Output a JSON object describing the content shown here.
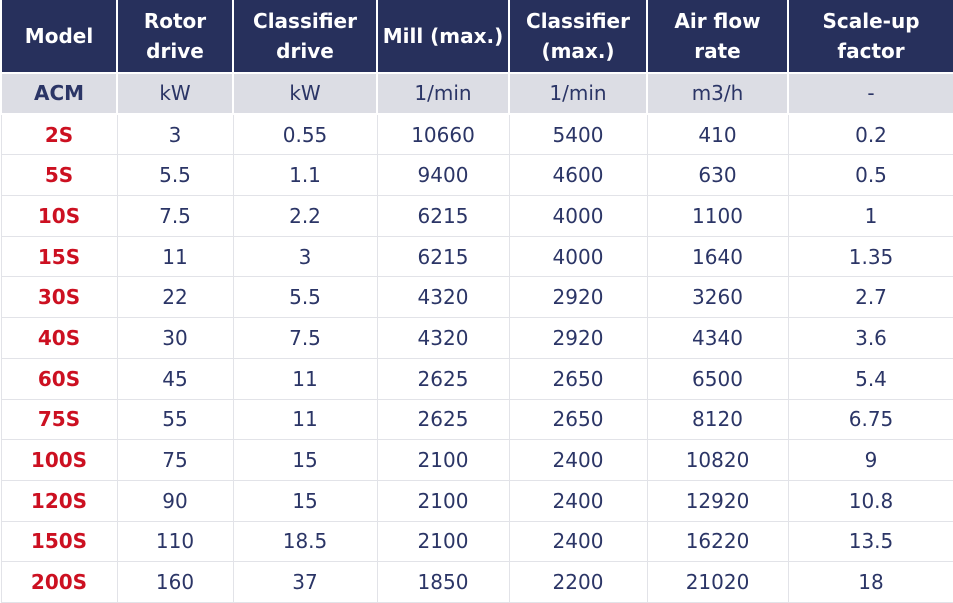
{
  "table": {
    "header": [
      "Model",
      "Rotor\ndrive",
      "Classifier\ndrive",
      "Mill (max.)",
      "Classifier\n(max.)",
      "Air flow\nrate",
      "Scale-up\nfactor"
    ],
    "units": [
      "ACM",
      "kW",
      "kW",
      "1/min",
      "1/min",
      "m3/h",
      "-"
    ],
    "rows": [
      [
        "2S",
        "3",
        "0.55",
        "10660",
        "5400",
        "410",
        "0.2"
      ],
      [
        "5S",
        "5.5",
        "1.1",
        "9400",
        "4600",
        "630",
        "0.5"
      ],
      [
        "10S",
        "7.5",
        "2.2",
        "6215",
        "4000",
        "1100",
        "1"
      ],
      [
        "15S",
        "11",
        "3",
        "6215",
        "4000",
        "1640",
        "1.35"
      ],
      [
        "30S",
        "22",
        "5.5",
        "4320",
        "2920",
        "3260",
        "2.7"
      ],
      [
        "40S",
        "30",
        "7.5",
        "4320",
        "2920",
        "4340",
        "3.6"
      ],
      [
        "60S",
        "45",
        "11",
        "2625",
        "2650",
        "6500",
        "5.4"
      ],
      [
        "75S",
        "55",
        "11",
        "2625",
        "2650",
        "8120",
        "6.75"
      ],
      [
        "100S",
        "75",
        "15",
        "2100",
        "2400",
        "10820",
        "9"
      ],
      [
        "120S",
        "90",
        "15",
        "2100",
        "2400",
        "12920",
        "10.8"
      ],
      [
        "150S",
        "110",
        "18.5",
        "2100",
        "2400",
        "16220",
        "13.5"
      ],
      [
        "200S",
        "160",
        "37",
        "1850",
        "2200",
        "21020",
        "18"
      ]
    ]
  }
}
